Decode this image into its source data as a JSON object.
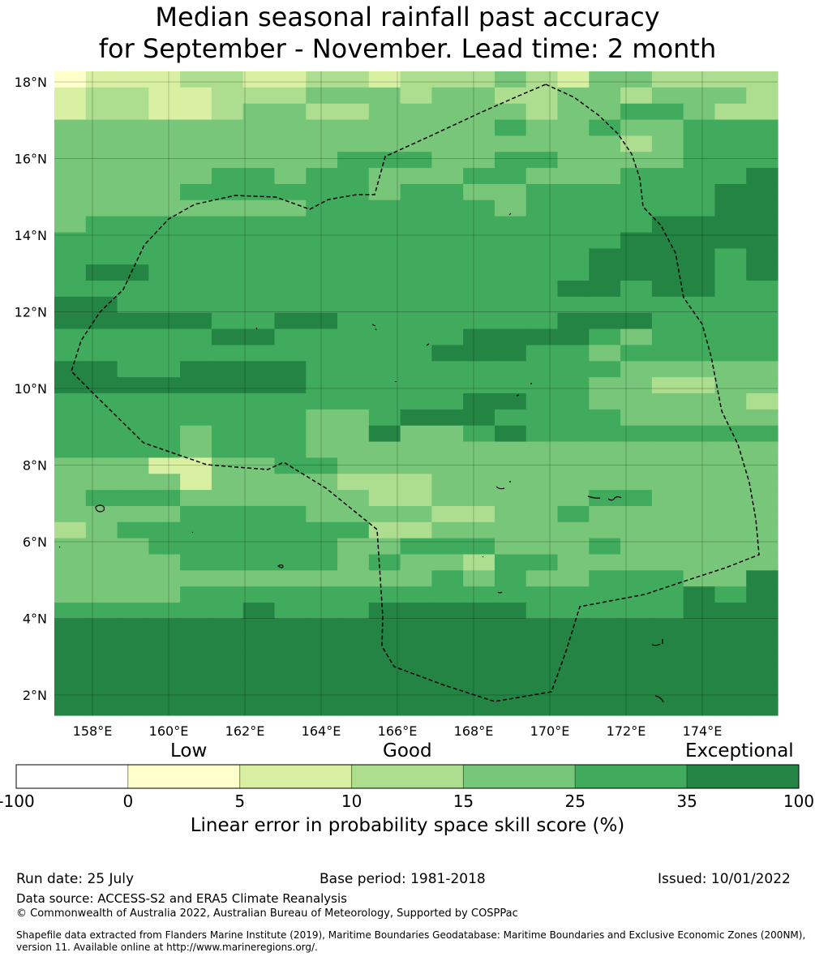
{
  "title": {
    "line1": "Median seasonal rainfall past accuracy",
    "line2": "for September - November. Lead time: 2 month"
  },
  "map": {
    "lat_labels": [
      "18°N",
      "16°N",
      "14°N",
      "12°N",
      "10°N",
      "8°N",
      "6°N",
      "4°N",
      "2°N"
    ],
    "lon_labels": [
      "158°E",
      "160°E",
      "162°E",
      "164°E",
      "166°E",
      "168°E",
      "170°E",
      "172°E",
      "174°E"
    ],
    "region_boundary": "dashed",
    "grid_lines": true,
    "category_colors": [
      "#ffffcc",
      "#d9f0a3",
      "#addd8e",
      "#78c679",
      "#41ab5d",
      "#238443"
    ],
    "grid": [
      "01112211221222321332222",
      "12211222333233223323332",
      "12211233223333323344322",
      "33333333333333433433444",
      "33333333333333333323444",
      "33333333344433443333444",
      "33333443443334433344445",
      "33334444443443344444455",
      "33333333444444344444455",
      "34444444444444444445555",
      "44444444444444444455555",
      "44444444444444444555545",
      "45544444444444444555545",
      "44444444444444445545544",
      "55444444444444444444444",
      "55555445544444445554444",
      "44444554444445555434444",
      "44444444444455544344444",
      "55445555444444444433333",
      "55555555444444444332233",
      "44444444444445544333332",
      "44444444334555444433333",
      "44443444335334544444444",
      "44443444333333333333333",
      "33311334433333333333333",
      "33331333322233333333333",
      "34443333332233333443333",
      "33334444333322334333333",
      "23444444442233333333333",
      "33344444433444333433333",
      "33334444434332443333333",
      "33333333333343433444335",
      "33334444444444444444545",
      "44444454445555544444555",
      "55555555555555555555555",
      "55555555555555555555555",
      "55555555555555555555555",
      "55555555555555555555555",
      "55555555555555555555555",
      "55555555555555555555555"
    ]
  },
  "colorbar": {
    "category_labels": {
      "low": "Low",
      "good": "Good",
      "exceptional": "Exceptional"
    },
    "ticks": [
      "-100",
      "0",
      "5",
      "10",
      "15",
      "25",
      "35",
      "100"
    ],
    "colors": [
      "#ffffff",
      "#ffffcc",
      "#d9f0a3",
      "#addd8e",
      "#78c679",
      "#41ab5d",
      "#238443"
    ],
    "label": "Linear error in probability space skill score (%)"
  },
  "footer": {
    "run_date": "Run date: 25 July",
    "base_period": "Base period: 1981-2018",
    "issued": "Issued: 10/01/2022",
    "data_source": "Data source: ACCESS-S2 and ERA5 Climate Reanalysis",
    "copyright": "© Commonwealth of Australia 2022, Australian Bureau of Meteorology, Supported by COSPPac",
    "shapefile_line1": "Shapefile data extracted from Flanders Marine Institute (2019), Maritime Boundaries Geodatabase: Maritime Boundaries and Exclusive Economic Zones (200NM),",
    "shapefile_line2": "version 11. Available online at http://www.marineregions.org/."
  }
}
